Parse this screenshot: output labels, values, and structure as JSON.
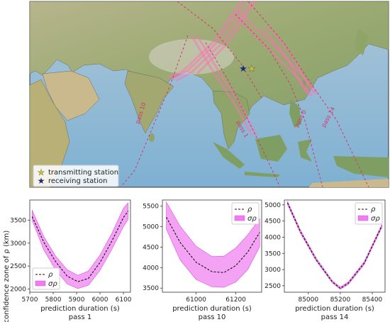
{
  "map": {
    "legend": [
      {
        "label": "transmitting station",
        "color": "#c7c52a"
      },
      {
        "label": "receiving station",
        "color": "#1d2a6b"
      }
    ],
    "pass_labels": [
      "pass 10",
      "pass 1",
      "pass 0",
      "pass 14"
    ],
    "track_color": "#ff6fb5",
    "dashed_color": "#d2336f"
  },
  "y_axis_title": "confidence zone of ρ (km)",
  "chart_data": [
    {
      "type": "area",
      "xlabel": "prediction duration (s)",
      "subtitle": "pass 1",
      "xlim": [
        5700,
        6130
      ],
      "ylim": [
        1930,
        3940
      ],
      "xticks": [
        5700,
        5800,
        5900,
        6000,
        6100
      ],
      "yticks": [
        2000,
        2500,
        3000,
        3500
      ],
      "legend_position": "lower-left",
      "series": [
        {
          "name": "ρ",
          "x": [
            5710,
            5760,
            5810,
            5860,
            5905,
            5950,
            6000,
            6050,
            6100,
            6120
          ],
          "values": [
            3580,
            3020,
            2600,
            2280,
            2160,
            2230,
            2580,
            3040,
            3560,
            3700
          ]
        },
        {
          "name": "σρ",
          "x": [
            5710,
            5760,
            5810,
            5860,
            5905,
            5950,
            6000,
            6050,
            6100,
            6120
          ],
          "lower": [
            3500,
            2850,
            2420,
            2110,
            2010,
            2080,
            2410,
            2860,
            3360,
            3520
          ],
          "upper": [
            3720,
            3140,
            2720,
            2420,
            2300,
            2390,
            2740,
            3210,
            3760,
            3880
          ]
        }
      ]
    },
    {
      "type": "area",
      "xlabel": "prediction duration (s)",
      "subtitle": "pass 10",
      "xlim": [
        60830,
        61330
      ],
      "ylim": [
        3400,
        5650
      ],
      "xticks": [
        61000,
        61200
      ],
      "yticks": [
        3500,
        4000,
        4500,
        5000,
        5500
      ],
      "legend_position": "top-right",
      "series": [
        {
          "name": "ρ",
          "x": [
            60850,
            60920,
            61000,
            61080,
            61140,
            61200,
            61260,
            61320
          ],
          "values": [
            5230,
            4610,
            4130,
            3900,
            3880,
            4050,
            4380,
            4860
          ]
        },
        {
          "name": "σρ",
          "x": [
            60850,
            60920,
            61000,
            61080,
            61140,
            61200,
            61260,
            61320
          ],
          "lower": [
            4940,
            4180,
            3710,
            3530,
            3520,
            3650,
            3950,
            4510
          ],
          "upper": [
            5600,
            5010,
            4520,
            4270,
            4280,
            4480,
            4800,
            5190
          ]
        }
      ]
    },
    {
      "type": "area",
      "xlabel": "prediction duration (s)",
      "subtitle": "pass 14",
      "xlim": [
        84850,
        85480
      ],
      "ylim": [
        2300,
        5150
      ],
      "xticks": [
        85000,
        85200,
        85400
      ],
      "yticks": [
        2500,
        3000,
        3500,
        4000,
        4500,
        5000
      ],
      "legend_position": "top-right",
      "series": [
        {
          "name": "ρ",
          "x": [
            84870,
            84950,
            85050,
            85150,
            85200,
            85250,
            85350,
            85460
          ],
          "values": [
            5060,
            4180,
            3300,
            2620,
            2420,
            2580,
            3200,
            4350
          ]
        },
        {
          "name": "σρ",
          "x": [
            84870,
            84950,
            85050,
            85150,
            85200,
            85250,
            85350,
            85460
          ],
          "lower": [
            5010,
            4130,
            3260,
            2590,
            2390,
            2540,
            3160,
            4300
          ],
          "upper": [
            5110,
            4230,
            3350,
            2660,
            2460,
            2620,
            3250,
            4400
          ]
        }
      ]
    }
  ]
}
